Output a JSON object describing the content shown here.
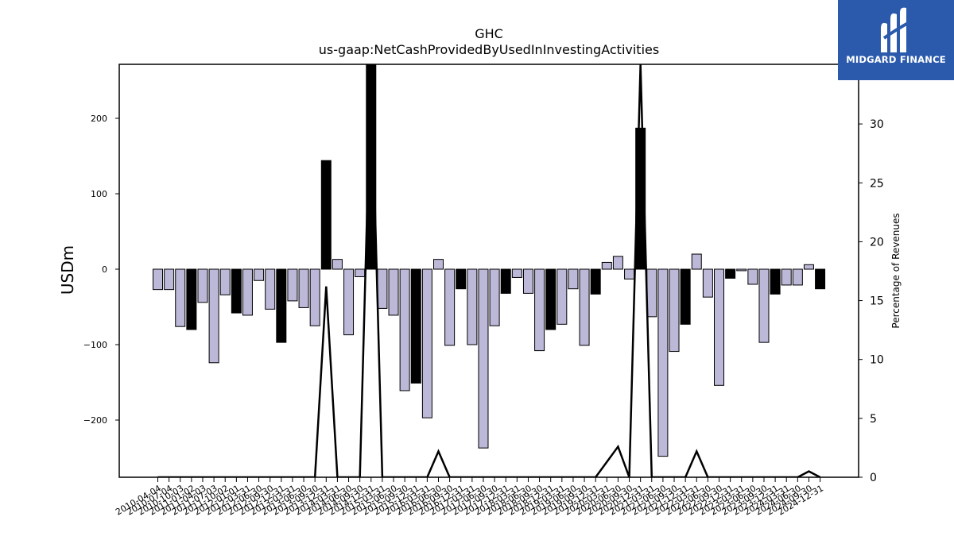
{
  "chart_data": {
    "type": "bar",
    "title": "GHC",
    "subtitle": "us-gaap:NetCashProvidedByUsedInInvestingActivities",
    "ylabel": "USDm",
    "ylabel_right": "Percentage of Revenues",
    "ylim": [
      -275,
      275
    ],
    "ylim_right": [
      0,
      35
    ],
    "yticks": [
      -200,
      -100,
      0,
      100,
      200
    ],
    "yticks_right": [
      0,
      5,
      10,
      15,
      20,
      25,
      30
    ],
    "bar_colors": {
      "quarterly": "#bcb8d8",
      "annual": "#000000"
    },
    "line_color": "#000000",
    "categories": [
      "2010-04-04",
      "2010-07-04",
      "2010-10-03",
      "2011-01-02",
      "2011-04-03",
      "2011-07-03",
      "2011-10-02",
      "2012-01-01",
      "2012-03-31",
      "2012-06-30",
      "2012-09-30",
      "2012-12-31",
      "2013-03-31",
      "2013-06-30",
      "2013-09-30",
      "2013-12-31",
      "2014-03-31",
      "2014-06-30",
      "2014-09-30",
      "2014-12-31",
      "2015-03-31",
      "2015-06-30",
      "2015-09-30",
      "2015-12-31",
      "2016-03-31",
      "2016-06-30",
      "2016-09-30",
      "2016-12-31",
      "2017-03-31",
      "2017-06-30",
      "2017-09-30",
      "2017-12-31",
      "2018-03-31",
      "2018-06-30",
      "2018-09-30",
      "2018-12-31",
      "2019-03-31",
      "2019-06-30",
      "2019-09-30",
      "2019-12-31",
      "2020-03-31",
      "2020-06-30",
      "2020-09-30",
      "2020-12-31",
      "2021-03-31",
      "2021-06-30",
      "2021-09-30",
      "2021-12-31",
      "2022-03-31",
      "2022-06-30",
      "2022-09-30",
      "2022-12-31",
      "2023-03-31",
      "2023-06-30",
      "2023-09-30",
      "2023-12-31",
      "2024-03-31",
      "2024-06-30",
      "2024-09-30",
      "2024-12-31"
    ],
    "values": [
      -27,
      -27,
      -76,
      -80,
      -44,
      -124,
      -34,
      -58,
      -61,
      -15,
      -53,
      -97,
      -42,
      -51,
      -75,
      144,
      13,
      -87,
      -10,
      290,
      -52,
      -61,
      -161,
      -151,
      -197,
      13,
      -101,
      -26,
      -100,
      -237,
      -75,
      -32,
      -11,
      -32,
      -108,
      -80,
      -73,
      -26,
      -101,
      -33,
      9,
      17,
      -13,
      187,
      -63,
      -248,
      -109,
      -73,
      20,
      -37,
      -154,
      -12,
      -2,
      -20,
      -97,
      -33,
      -21,
      -21,
      6,
      -26
    ],
    "annual": [
      false,
      false,
      false,
      true,
      false,
      false,
      false,
      true,
      false,
      false,
      false,
      true,
      false,
      false,
      false,
      true,
      false,
      false,
      false,
      true,
      false,
      false,
      false,
      true,
      false,
      false,
      false,
      true,
      false,
      false,
      false,
      true,
      false,
      false,
      false,
      true,
      false,
      false,
      false,
      true,
      false,
      false,
      false,
      true,
      false,
      false,
      false,
      true,
      false,
      false,
      false,
      true,
      false,
      false,
      false,
      true,
      false,
      false,
      false,
      true
    ],
    "line_pct": [
      0,
      0,
      0,
      0,
      0,
      0,
      0,
      0,
      0,
      0,
      0,
      0,
      0,
      0,
      0,
      16.2,
      0,
      0,
      0,
      36,
      0,
      0,
      0,
      0,
      0,
      2.2,
      0,
      0,
      0,
      0,
      0,
      0,
      0,
      0,
      0,
      0,
      0,
      0,
      0,
      0,
      1.3,
      2.6,
      0,
      36,
      0,
      0,
      0,
      0,
      2.2,
      0,
      0,
      0,
      0,
      0,
      0,
      0,
      0,
      0,
      0.5,
      0
    ]
  },
  "logo": {
    "text": "MIDGARD FINANCE",
    "icon": "midgard-logo-icon",
    "background": "#2b5aad"
  }
}
